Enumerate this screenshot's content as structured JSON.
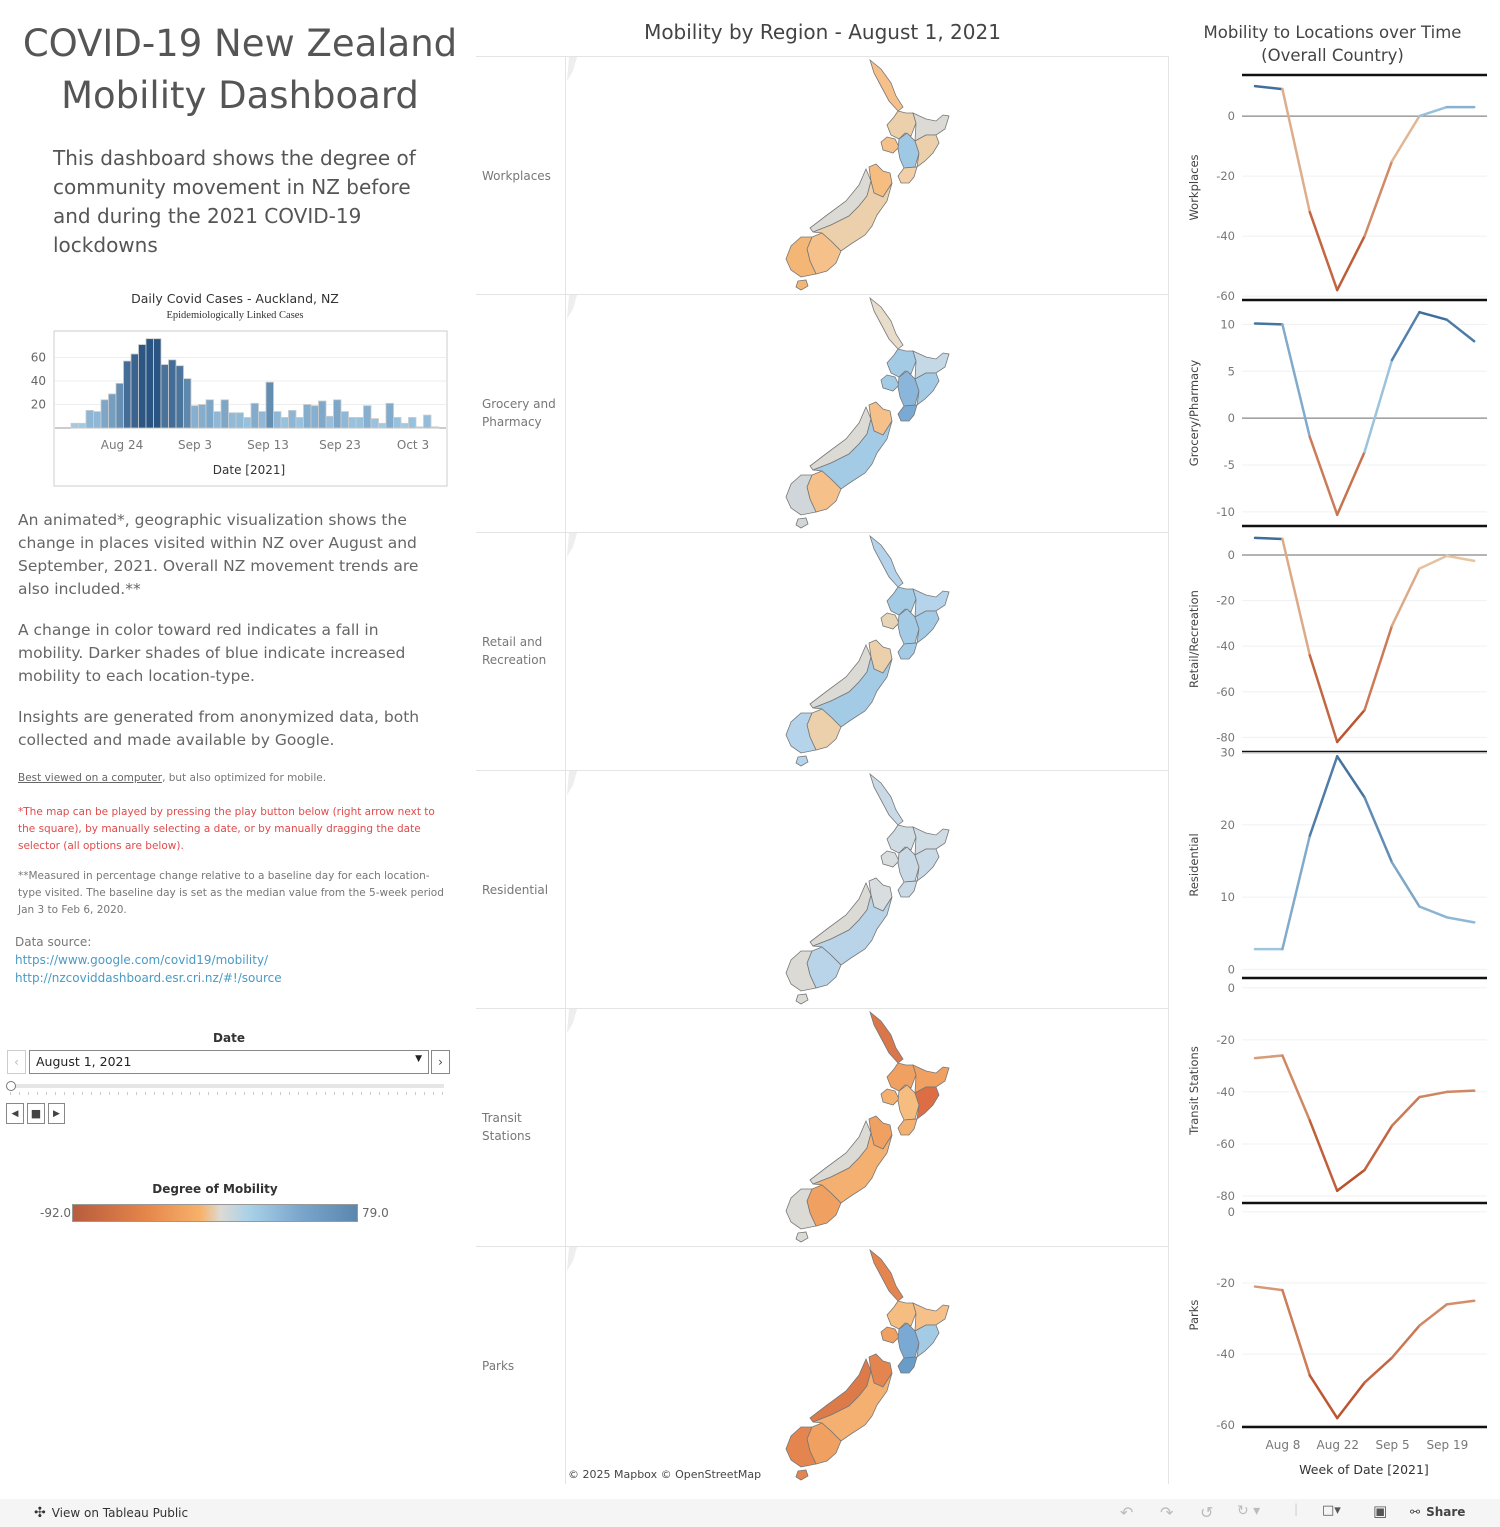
{
  "title": "COVID-19 New Zealand Mobility Dashboard",
  "subtitle": "This dashboard shows the degree of community movement in NZ before and during the 2021 COVID-19 lockdowns",
  "paragraphs": [
    "An animated*, geographic visualization shows the change in places visited within NZ over August and September, 2021. Overall NZ movement trends are also included.**",
    "A change in color toward red indicates a fall in mobility. Darker shades of blue indicate increased mobility to each location-type.",
    "Insights are generated from anonymized data, both collected and made available by Google."
  ],
  "best_viewed_link": "Best viewed on a computer",
  "best_viewed_rest": ", but also optimized for mobile.",
  "note_play": "*The map can be played by pressing the play button below (right arrow next to the square), by manually selecting a date, or by manually dragging the date selector (all options are below).",
  "note_measure": "**Measured in percentage change relative to a baseline day for each location-type visited. The baseline day is set as the median value from the 5-week period Jan 3 to Feb 6, 2020.",
  "data_source_label": "Data source:",
  "links": [
    "https://www.google.com/covid19/mobility/",
    "http://nzcoviddashboard.esr.cri.nz/#!/source"
  ],
  "date_filter": {
    "label": "Date",
    "value": "August 1, 2021",
    "progress": 0
  },
  "legend": {
    "title": "Degree of Mobility",
    "min": "-92.0",
    "max": "79.0"
  },
  "map_title": "Mobility by Region - August 1, 2021",
  "map_credit": "© 2025 Mapbox  © OpenStreetMap",
  "maps": [
    {
      "label": "Workplaces",
      "colors": [
        "#f6c08a",
        "#ecd0ab",
        "#f6c08a",
        "#9ec8e4",
        "#dcdad4",
        "#ecd0ab",
        "#f2cfa6",
        "#f6bd80",
        "#dcdad4",
        "#ecd0ab",
        "#f6c08a",
        "#f4b674",
        "#f4b674"
      ]
    },
    {
      "label": "Grocery and Pharmacy",
      "colors": [
        "#e8dccb",
        "#a4cbe6",
        "#a4cbe6",
        "#8ab6dc",
        "#c4d8e6",
        "#a4cbe6",
        "#7aa9d4",
        "#f6c08a",
        "#dcdad4",
        "#a4cbe6",
        "#f6c08a",
        "#d0d6da",
        "#d0d6da"
      ]
    },
    {
      "label": "Retail and Recreation",
      "colors": [
        "#b5d3ea",
        "#a4cbe6",
        "#e8d4b6",
        "#a4cbe6",
        "#b5d3ea",
        "#a4cbe6",
        "#a4cbe6",
        "#ecd0ab",
        "#dcdad4",
        "#a4cbe6",
        "#ecd0ab",
        "#b5d3ea",
        "#b5d3ea"
      ]
    },
    {
      "label": "Residential",
      "colors": [
        "#c9dae6",
        "#d0dce4",
        "#d8dde0",
        "#c9dae6",
        "#d0dce4",
        "#c9dae6",
        "#c9dae6",
        "#d8dde0",
        "#dcdad4",
        "#b9d3e8",
        "#b9d3e8",
        "#dcdad4",
        "#dcdad4"
      ]
    },
    {
      "label": "Transit Stations",
      "colors": [
        "#d9774b",
        "#f0a060",
        "#f3b070",
        "#f6bd80",
        "#f0a060",
        "#dd6d44",
        "#f3b070",
        "#f0a060",
        "#dcdad4",
        "#f3b070",
        "#f0a060",
        "#dcdad4",
        "#dcdad4"
      ]
    },
    {
      "label": "Parks",
      "colors": [
        "#e4854f",
        "#f6bd80",
        "#f0a060",
        "#7aa9d4",
        "#f6c08a",
        "#a4cbe6",
        "#6a9cc8",
        "#e4854f",
        "#dc7a4a",
        "#f3b070",
        "#f0a060",
        "#e4854f",
        "#e4854f"
      ]
    }
  ],
  "chart_data": [
    {
      "type": "bar",
      "title": "Daily Covid Cases - Auckland, NZ",
      "subtitle": "Epidemiologically Linked Cases",
      "xlabel": "Date [2021]",
      "ylabel": "",
      "ylim": [
        0,
        80
      ],
      "yticks": [
        20,
        40,
        60
      ],
      "xticks": [
        "Aug 24",
        "Sep 3",
        "Sep 13",
        "Sep 23",
        "Oct 3"
      ],
      "start_date": "Aug 18",
      "values": [
        4,
        4,
        15,
        14,
        24,
        29,
        38,
        57,
        63,
        71,
        76,
        76,
        54,
        58,
        53,
        42,
        19,
        20,
        24,
        14,
        24,
        13,
        13,
        9,
        21,
        14,
        39,
        14,
        9,
        15,
        9,
        20,
        19,
        23,
        10,
        24,
        14,
        9,
        9,
        19,
        8,
        4,
        21,
        9,
        4,
        9,
        1,
        11,
        1
      ]
    },
    {
      "type": "line",
      "title": "Mobility to Locations over Time (Overall Country)",
      "xlabel": "Week of Date [2021]",
      "x": [
        "Aug 1",
        "Aug 8",
        "Aug 15",
        "Aug 22",
        "Aug 29",
        "Sep 5",
        "Sep 12",
        "Sep 19",
        "Sep 26"
      ],
      "xticks": [
        "Aug 8",
        "Aug 22",
        "Sep 5",
        "Sep 19"
      ],
      "series": [
        {
          "name": "Workplaces",
          "values": [
            10,
            9,
            -32,
            -58,
            -40,
            -15,
            0,
            3,
            3
          ],
          "ylim": [
            13.7,
            -61.3
          ],
          "yticks": [
            0,
            -20,
            -40,
            -60
          ],
          "zero_line": true
        },
        {
          "name": "Grocery/Pharmacy",
          "values": [
            10.1,
            10,
            -2,
            -10.3,
            -3.6,
            6.2,
            11.3,
            10.5,
            8.2
          ],
          "ylim": [
            12.6,
            -11.5
          ],
          "yticks": [
            10,
            5,
            0,
            -5,
            -10
          ],
          "zero_line": true
        },
        {
          "name": "Retail/Recreation",
          "values": [
            7.5,
            7,
            -44,
            -82,
            -68,
            -31,
            -6,
            -0.4,
            -2.6
          ],
          "ylim": [
            12.7,
            -86.4
          ],
          "yticks": [
            0,
            -20,
            -40,
            -60,
            -80
          ],
          "zero_line": true
        },
        {
          "name": "Residential",
          "values": [
            2.8,
            2.8,
            18.5,
            29.5,
            23.8,
            14.8,
            8.7,
            7.2,
            6.5
          ],
          "ylim": [
            30.1,
            -1.2
          ],
          "yticks": [
            30,
            20,
            10,
            0
          ],
          "zero_line": false
        },
        {
          "name": "Transit Stations",
          "values": [
            -27,
            -26,
            -51,
            -78,
            -70,
            -53,
            -42,
            -40,
            -39.5
          ],
          "ylim": [
            3.8,
            -82.7
          ],
          "yticks": [
            0,
            -20,
            -40,
            -60,
            -80
          ],
          "zero_line": false
        },
        {
          "name": "Parks",
          "values": [
            -21,
            -22,
            -46,
            -58,
            -48,
            -41,
            -32,
            -26,
            -25
          ],
          "ylim": [
            2.5,
            -60.5
          ],
          "yticks": [
            0,
            -20,
            -40,
            -60
          ],
          "zero_line": false
        }
      ]
    }
  ],
  "footer": {
    "view_label": "View on Tableau Public",
    "share_label": "Share"
  }
}
